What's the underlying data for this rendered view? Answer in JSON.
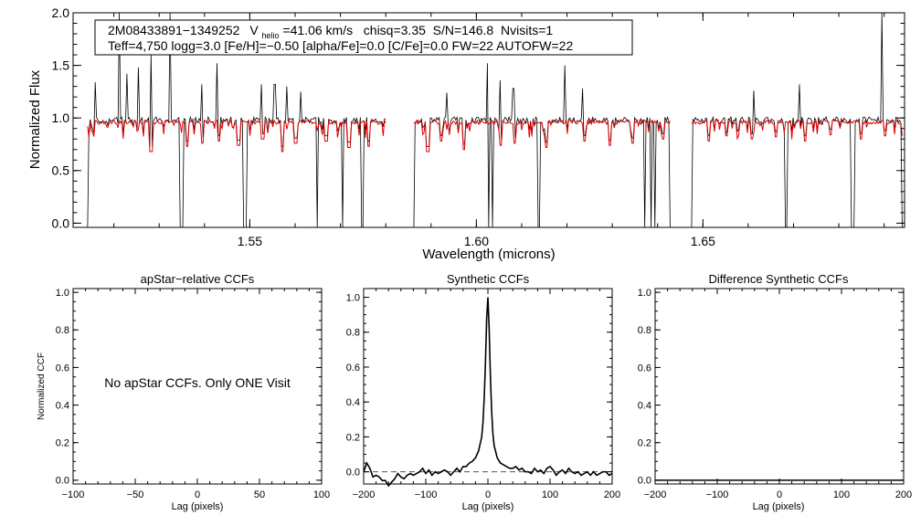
{
  "chart_data": [
    {
      "type": "line",
      "ylabel": "Normalized Flux",
      "xlabel": "Wavelength (microns)",
      "xlim": [
        1.511,
        1.6945
      ],
      "ylim": [
        -0.04,
        2.0
      ],
      "xticks": [
        "1.55",
        "1.60",
        "1.65"
      ],
      "xtick_values": [
        1.55,
        1.6,
        1.65
      ],
      "yticks": [
        "0.0",
        "0.5",
        "1.0",
        "1.5",
        "2.0"
      ],
      "ytick_values": [
        0.0,
        0.5,
        1.0,
        1.5,
        2.0
      ],
      "annotation": {
        "line1_star": "2M08433891−1349252",
        "line1_vhelio_v": "V",
        "line1_vhelio_sub": "helio",
        "line1_vhelio_value": "=41.06 km/s",
        "line1_rest": "  chisq=3.35  S/N=146.8  Nvisits=1",
        "line2": "Teff=4,750 logg=3.0 [Fe/H]=−0.50 [alpha/Fe]=0.0 [C/Fe]=0.0 FW=22 AUTOFW=22"
      },
      "detector_ranges": [
        [
          1.5142,
          1.5802
        ],
        [
          1.5862,
          1.6428
        ],
        [
          1.6475,
          1.694
        ]
      ],
      "observed_color": "#000000",
      "model_color": "#e00000",
      "continuum_level": 0.98,
      "emission_spikes_x": [
        1.5158,
        1.5212,
        1.5228,
        1.5255,
        1.5282,
        1.5325,
        1.5348,
        1.5395,
        1.5428,
        1.5488,
        1.5525,
        1.5555,
        1.5582,
        1.5612,
        1.5648,
        1.5705,
        1.5748,
        1.5935,
        1.6025,
        1.6052,
        1.6082,
        1.6138,
        1.6195,
        1.6235,
        1.6372,
        1.6612,
        1.6712,
        1.6895
      ],
      "emission_spikes_y": [
        1.34,
        2.0,
        1.42,
        1.48,
        1.6,
        2.0,
        1.58,
        1.32,
        1.52,
        1.28,
        1.32,
        1.32,
        1.3,
        1.25,
        1.62,
        1.22,
        1.3,
        1.24,
        1.52,
        1.36,
        1.28,
        1.32,
        1.5,
        1.28,
        1.28,
        1.26,
        1.32,
        2.0
      ],
      "absorption_drops_x": [
        1.5142,
        1.5348,
        1.5352,
        1.5488,
        1.5492,
        1.5648,
        1.5705,
        1.5748,
        1.5802,
        1.5862,
        1.6028,
        1.6035,
        1.6138,
        1.6372,
        1.6385,
        1.6395,
        1.6428,
        1.6475,
        1.6682,
        1.6686,
        1.6828,
        1.6832,
        1.694
      ],
      "model_absorption_x": [
        1.5282,
        1.5362,
        1.5395,
        1.5431,
        1.5475,
        1.5528,
        1.5572,
        1.5601,
        1.5668,
        1.5719,
        1.5762,
        1.5893,
        1.5922,
        1.5972,
        1.6054,
        1.6085,
        1.6154,
        1.6238,
        1.6295,
        1.6345,
        1.6412,
        1.6512,
        1.6552,
        1.6608,
        1.6662,
        1.6725,
        1.6782,
        1.6848,
        1.6902
      ],
      "model_absorption_depth": [
        0.3,
        0.25,
        0.22,
        0.2,
        0.24,
        0.18,
        0.3,
        0.22,
        0.2,
        0.26,
        0.25,
        0.3,
        0.2,
        0.28,
        0.24,
        0.22,
        0.26,
        0.2,
        0.24,
        0.22,
        0.18,
        0.2,
        0.15,
        0.18,
        0.16,
        0.2,
        0.14,
        0.18,
        0.15
      ]
    },
    {
      "type": "line",
      "title": "apStar−relative CCFs",
      "xlabel": "Lag (pixels)",
      "ylabel": "Normalized CCF",
      "xlim": [
        -100,
        100
      ],
      "ylim": [
        -0.02,
        1.02
      ],
      "xticks": [
        "−100",
        "−50",
        "0",
        "50",
        "100"
      ],
      "xtick_values": [
        -100,
        -50,
        0,
        50,
        100
      ],
      "yticks": [
        "0.0",
        "0.2",
        "0.4",
        "0.6",
        "0.8",
        "1.0"
      ],
      "ytick_values": [
        0.0,
        0.2,
        0.4,
        0.6,
        0.8,
        1.0
      ],
      "message": "No apStar CCFs.  Only ONE Visit"
    },
    {
      "type": "line",
      "title": "Synthetic CCFs",
      "xlabel": "Lag (pixels)",
      "xlim": [
        -200,
        200
      ],
      "ylim": [
        -0.07,
        1.05
      ],
      "xticks": [
        "−200",
        "−100",
        "0",
        "100",
        "200"
      ],
      "xtick_values": [
        -200,
        -100,
        0,
        100,
        200
      ],
      "yticks": [
        "0.0",
        "0.2",
        "0.4",
        "0.6",
        "0.8",
        "1.0"
      ],
      "ytick_values": [
        0.0,
        0.2,
        0.4,
        0.6,
        0.8,
        1.0
      ],
      "baseline": 0.0,
      "x": [
        -200,
        -195,
        -190,
        -185,
        -180,
        -175,
        -170,
        -165,
        -160,
        -155,
        -150,
        -145,
        -140,
        -135,
        -130,
        -125,
        -120,
        -115,
        -110,
        -105,
        -100,
        -95,
        -90,
        -85,
        -80,
        -75,
        -70,
        -65,
        -60,
        -55,
        -50,
        -45,
        -40,
        -35,
        -30,
        -25,
        -20,
        -15,
        -10,
        -8,
        -6,
        -4,
        -2,
        0,
        2,
        4,
        6,
        8,
        10,
        15,
        20,
        25,
        30,
        35,
        40,
        45,
        50,
        55,
        60,
        65,
        70,
        75,
        80,
        85,
        90,
        95,
        100,
        105,
        110,
        115,
        120,
        125,
        130,
        135,
        140,
        145,
        150,
        155,
        160,
        165,
        170,
        175,
        180,
        185,
        190,
        195,
        200
      ],
      "y": [
        0.0,
        0.05,
        0.02,
        -0.03,
        -0.02,
        -0.03,
        -0.05,
        -0.05,
        -0.08,
        -0.06,
        -0.04,
        -0.01,
        -0.03,
        -0.04,
        -0.02,
        -0.01,
        -0.02,
        -0.01,
        0.0,
        0.02,
        -0.01,
        0.01,
        -0.02,
        0.0,
        -0.01,
        0.0,
        0.01,
        0.0,
        -0.02,
        0.0,
        0.02,
        0.0,
        0.03,
        0.03,
        0.05,
        0.06,
        0.08,
        0.12,
        0.2,
        0.28,
        0.42,
        0.62,
        0.88,
        1.0,
        0.82,
        0.55,
        0.35,
        0.22,
        0.15,
        0.08,
        0.05,
        0.04,
        0.03,
        0.02,
        0.02,
        0.03,
        0.01,
        0.02,
        0.0,
        0.0,
        -0.01,
        0.02,
        0.0,
        0.01,
        -0.01,
        0.02,
        0.03,
        0.01,
        -0.02,
        0.0,
        0.01,
        -0.01,
        0.02,
        0.0,
        -0.01,
        0.0,
        -0.02,
        -0.01,
        0.0,
        -0.02,
        0.0,
        -0.02,
        -0.01,
        0.0,
        0.0,
        -0.02,
        -0.01
      ]
    },
    {
      "type": "line",
      "title": "Difference Synthetic CCFs",
      "xlabel": "Lag (pixels)",
      "xlim": [
        -200,
        200
      ],
      "ylim": [
        -0.02,
        1.02
      ],
      "xticks": [
        "−200",
        "−100",
        "0",
        "100",
        "200"
      ],
      "xtick_values": [
        -200,
        -100,
        0,
        100,
        200
      ],
      "yticks": [
        "0.0",
        "0.2",
        "0.4",
        "0.6",
        "0.8",
        "1.0"
      ],
      "ytick_values": [
        0.0,
        0.2,
        0.4,
        0.6,
        0.8,
        1.0
      ],
      "x": [
        -200,
        200
      ],
      "y": [
        0.0,
        0.0
      ]
    }
  ]
}
